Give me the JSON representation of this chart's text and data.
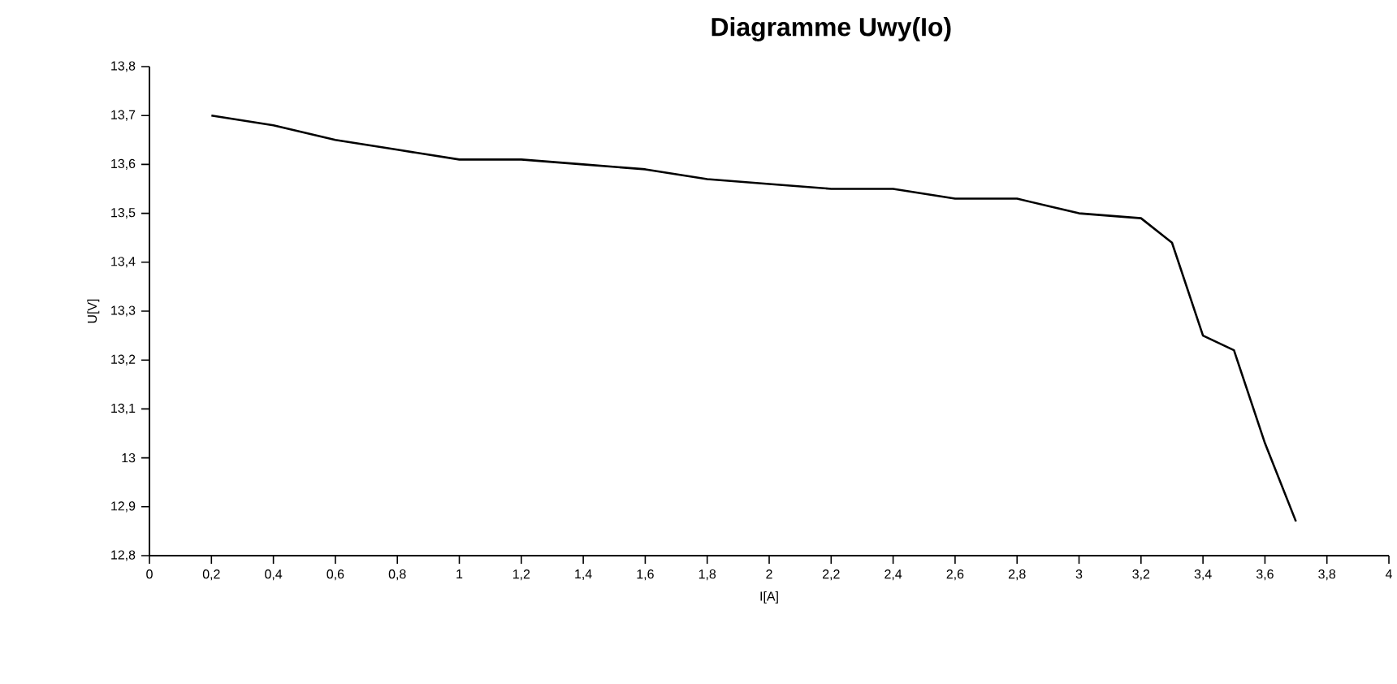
{
  "chart_data": {
    "type": "line",
    "title": "Diagramme Uwy(Io)",
    "xlabel": "I[A]",
    "ylabel": "U[V]",
    "x": [
      0.2,
      0.4,
      0.6,
      0.8,
      1.0,
      1.2,
      1.4,
      1.6,
      1.8,
      2.0,
      2.2,
      2.4,
      2.6,
      2.8,
      3.0,
      3.2,
      3.3,
      3.4,
      3.5,
      3.6,
      3.7
    ],
    "series": [
      {
        "color": "#000000",
        "values": [
          13.7,
          13.68,
          13.65,
          13.63,
          13.61,
          13.61,
          13.6,
          13.59,
          13.57,
          13.56,
          13.55,
          13.55,
          13.53,
          13.53,
          13.5,
          13.49,
          13.44,
          13.25,
          13.22,
          13.03,
          12.87
        ]
      }
    ],
    "xlim": [
      0,
      4
    ],
    "ylim": [
      12.8,
      13.8
    ],
    "xticks": [
      {
        "value": 0,
        "label": "0"
      },
      {
        "value": 0.2,
        "label": "0,2"
      },
      {
        "value": 0.4,
        "label": "0,4"
      },
      {
        "value": 0.6,
        "label": "0,6"
      },
      {
        "value": 0.8,
        "label": "0,8"
      },
      {
        "value": 1,
        "label": "1"
      },
      {
        "value": 1.2,
        "label": "1,2"
      },
      {
        "value": 1.4,
        "label": "1,4"
      },
      {
        "value": 1.6,
        "label": "1,6"
      },
      {
        "value": 1.8,
        "label": "1,8"
      },
      {
        "value": 2,
        "label": "2"
      },
      {
        "value": 2.2,
        "label": "2,2"
      },
      {
        "value": 2.4,
        "label": "2,4"
      },
      {
        "value": 2.6,
        "label": "2,6"
      },
      {
        "value": 2.8,
        "label": "2,8"
      },
      {
        "value": 3,
        "label": "3"
      },
      {
        "value": 3.2,
        "label": "3,2"
      },
      {
        "value": 3.4,
        "label": "3,4"
      },
      {
        "value": 3.6,
        "label": "3,6"
      },
      {
        "value": 3.8,
        "label": "3,8"
      },
      {
        "value": 4,
        "label": "4"
      }
    ],
    "yticks": [
      {
        "value": 12.8,
        "label": "12,8"
      },
      {
        "value": 12.9,
        "label": "12,9"
      },
      {
        "value": 13,
        "label": "13"
      },
      {
        "value": 13.1,
        "label": "13,1"
      },
      {
        "value": 13.2,
        "label": "13,2"
      },
      {
        "value": 13.3,
        "label": "13,3"
      },
      {
        "value": 13.4,
        "label": "13,4"
      },
      {
        "value": 13.5,
        "label": "13,5"
      },
      {
        "value": 13.6,
        "label": "13,6"
      },
      {
        "value": 13.7,
        "label": "13,7"
      },
      {
        "value": 13.8,
        "label": "13,8"
      }
    ],
    "grid": false,
    "marker": "none",
    "line_style": "solid"
  }
}
